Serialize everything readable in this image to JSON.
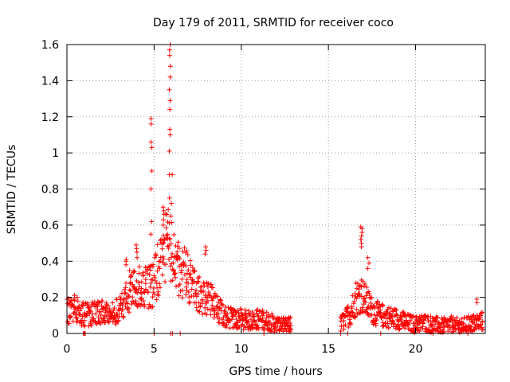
{
  "chart_data": {
    "type": "scatter",
    "title": "Day 179 of 2011, SRMTID for receiver coco",
    "xlabel": "GPS time / hours",
    "ylabel": "SRMTID / TECUs",
    "xlim": [
      0,
      24
    ],
    "ylim": [
      0,
      1.6
    ],
    "x_ticks": [
      "0",
      "5",
      "10",
      "15",
      "20"
    ],
    "x_tick_values": [
      0,
      5,
      10,
      15,
      20
    ],
    "y_ticks": [
      "0",
      "0.2",
      "0.4",
      "0.6",
      "0.8",
      "1",
      "1.2",
      "1.4",
      "1.6"
    ],
    "y_tick_values": [
      0,
      0.2,
      0.4,
      0.6,
      0.8,
      1.0,
      1.2,
      1.4,
      1.6
    ],
    "grid": true,
    "marker": "+",
    "series_color": "#ff0000",
    "profile": [
      [
        0.0,
        0.12
      ],
      [
        0.5,
        0.14
      ],
      [
        1.0,
        0.1
      ],
      [
        1.5,
        0.11
      ],
      [
        2.0,
        0.12
      ],
      [
        2.5,
        0.11
      ],
      [
        3.0,
        0.13
      ],
      [
        3.3,
        0.16
      ],
      [
        3.6,
        0.24
      ],
      [
        4.0,
        0.26
      ],
      [
        4.5,
        0.25
      ],
      [
        5.0,
        0.27
      ],
      [
        5.5,
        0.46
      ],
      [
        5.8,
        0.5
      ],
      [
        6.2,
        0.38
      ],
      [
        6.6,
        0.35
      ],
      [
        7.0,
        0.3
      ],
      [
        7.5,
        0.22
      ],
      [
        8.0,
        0.2
      ],
      [
        8.5,
        0.16
      ],
      [
        9.0,
        0.1
      ],
      [
        9.5,
        0.08
      ],
      [
        10.0,
        0.08
      ],
      [
        10.5,
        0.07
      ],
      [
        11.0,
        0.08
      ],
      [
        11.5,
        0.07
      ],
      [
        12.0,
        0.05
      ],
      [
        12.5,
        0.04
      ],
      [
        12.9,
        0.05
      ]
    ],
    "profile2": [
      [
        15.7,
        0.05
      ],
      [
        16.0,
        0.08
      ],
      [
        16.3,
        0.12
      ],
      [
        16.6,
        0.2
      ],
      [
        16.9,
        0.22
      ],
      [
        17.2,
        0.17
      ],
      [
        17.6,
        0.12
      ],
      [
        18.0,
        0.1
      ],
      [
        18.5,
        0.09
      ],
      [
        19.0,
        0.08
      ],
      [
        19.5,
        0.06
      ],
      [
        20.0,
        0.05
      ],
      [
        20.5,
        0.06
      ],
      [
        21.0,
        0.05
      ],
      [
        21.5,
        0.04
      ],
      [
        22.0,
        0.05
      ],
      [
        22.5,
        0.04
      ],
      [
        23.0,
        0.05
      ],
      [
        23.5,
        0.06
      ],
      [
        23.9,
        0.07
      ]
    ],
    "peaks": [
      {
        "x": 4.85,
        "values": [
          1.19,
          1.16,
          1.06,
          1.03,
          0.9,
          0.8,
          0.62,
          0.55
        ]
      },
      {
        "x": 5.9,
        "values": [
          1.6,
          1.57,
          1.54,
          1.48,
          1.42,
          1.35,
          1.29,
          1.24,
          1.13,
          1.1,
          1.01,
          0.88,
          0.75
        ]
      },
      {
        "x": 6.0,
        "values": [
          0.88,
          0.72,
          0.65
        ]
      },
      {
        "x": 5.55,
        "values": [
          0.7,
          0.68,
          0.66,
          0.63,
          0.6
        ]
      },
      {
        "x": 16.9,
        "values": [
          0.59,
          0.58,
          0.56,
          0.54,
          0.52,
          0.5,
          0.48
        ]
      },
      {
        "x": 17.3,
        "values": [
          0.42,
          0.39,
          0.36
        ]
      },
      {
        "x": 3.4,
        "values": [
          0.41,
          0.4,
          0.38
        ]
      },
      {
        "x": 4.0,
        "values": [
          0.49,
          0.47,
          0.45,
          0.42
        ]
      },
      {
        "x": 7.95,
        "values": [
          0.48,
          0.46,
          0.44
        ]
      },
      {
        "x": 23.5,
        "values": [
          0.19,
          0.17
        ]
      }
    ],
    "zeros": [
      0.95,
      1.0,
      1.05,
      5.0,
      5.95,
      6.05,
      6.5,
      11.3,
      15.7,
      16.1,
      18.0,
      21.0,
      23.0
    ]
  }
}
